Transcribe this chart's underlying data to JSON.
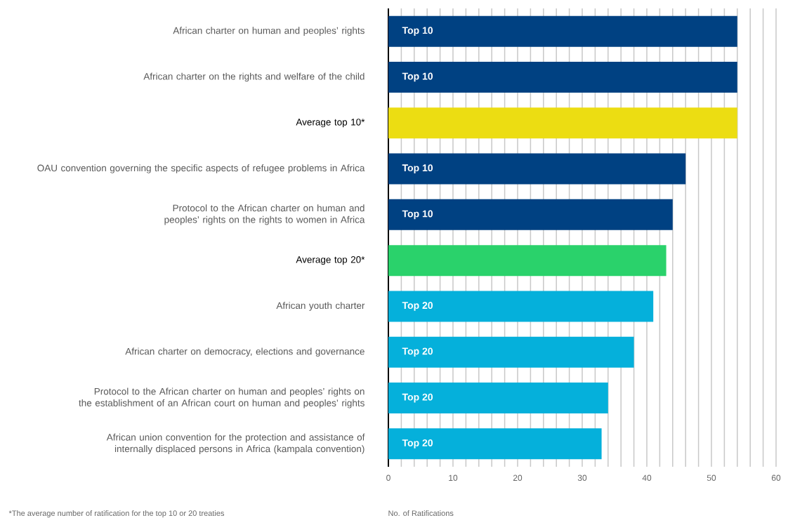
{
  "chart_data": {
    "type": "bar",
    "orientation": "horizontal",
    "categories": [
      "African charter on human and peoples’ rights",
      "African charter on the rights and welfare of the child",
      "Average top 10*",
      "OAU convention governing the specific aspects of refugee problems in Africa",
      "Protocol to the African charter on human and peoples’ rights on the rights to women in Africa",
      "Average top 20*",
      "African youth charter",
      "African charter on democracy, elections and governance",
      "Protocol to the African charter on human and peoples’ rights on  the establishment of an African court on human and peoples’ rights",
      "African union convention for the protection and assistance of internally displaced persons in Africa (kampala convention)"
    ],
    "series": [
      {
        "name": "Top 10",
        "color": "#004182",
        "values": [
          54,
          54,
          null,
          46,
          44,
          null,
          null,
          null,
          null,
          null
        ]
      },
      {
        "color": "#ecdd12",
        "values": [
          null,
          null,
          54,
          null,
          null,
          null,
          null,
          null,
          null,
          null
        ]
      },
      {
        "color": "#2ad26b",
        "values": [
          null,
          null,
          null,
          null,
          null,
          43,
          null,
          null,
          null,
          null
        ]
      },
      {
        "name": "Top 20",
        "color": "#05b0db",
        "values": [
          null,
          null,
          null,
          null,
          null,
          null,
          41,
          38,
          34,
          33
        ]
      }
    ],
    "xlim": [
      0,
      60
    ],
    "xticks": [
      0,
      10,
      20,
      30,
      40,
      50,
      60
    ],
    "grid": "x",
    "xlabel": "No. of Ratifications",
    "annotations": [
      "*The average number of ratification for the top 10 or 20 treaties"
    ]
  }
}
